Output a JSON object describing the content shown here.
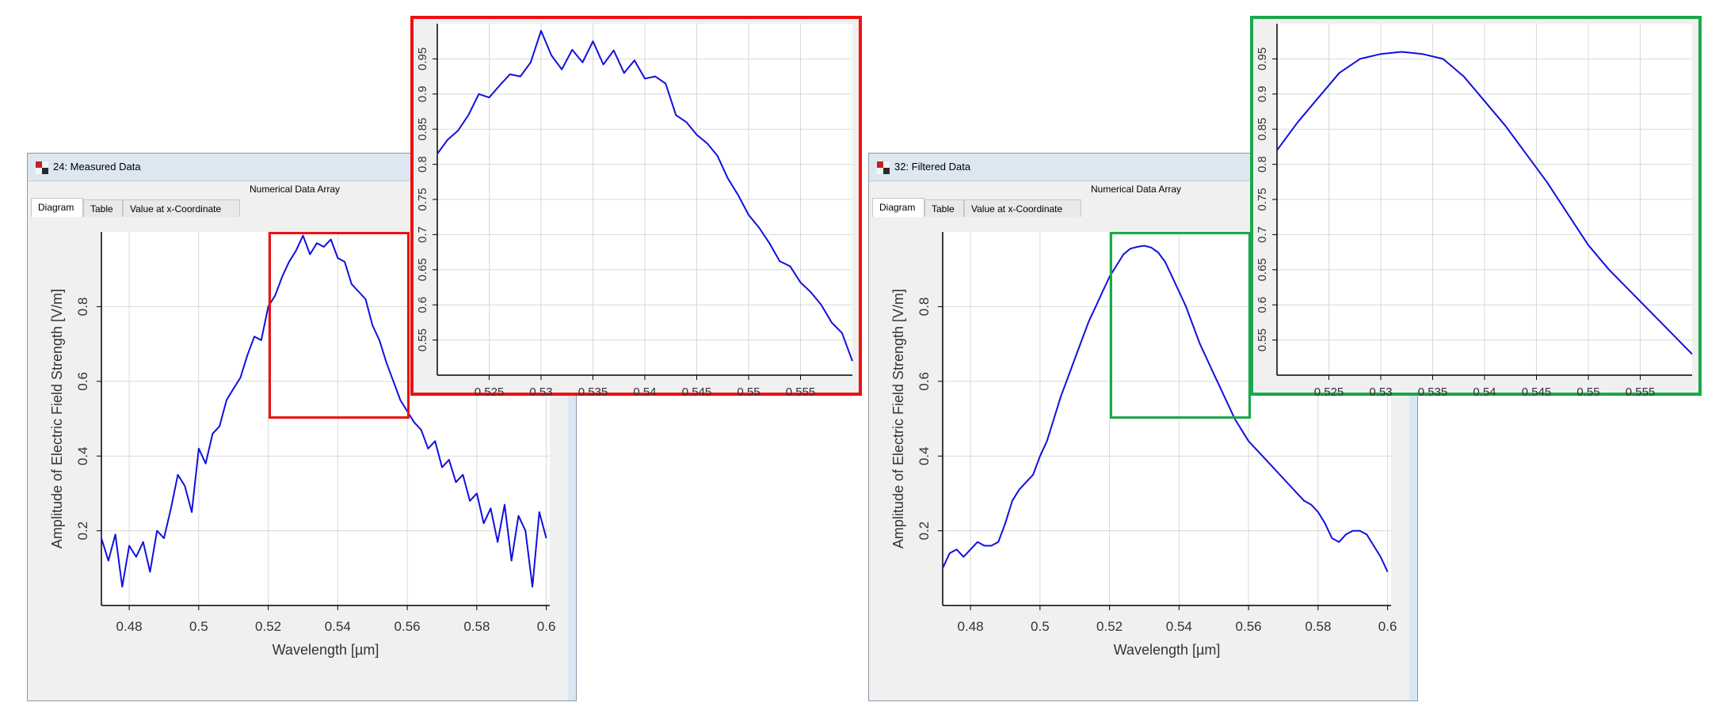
{
  "windows": [
    {
      "id": "measured",
      "title": "24: Measured Data",
      "subtitle": "Numerical Data Array",
      "tabs": [
        "Diagram",
        "Table",
        "Value at x-Coordinate"
      ],
      "active_tab": "Diagram"
    },
    {
      "id": "filtered",
      "title": "32: Filtered Data",
      "subtitle": "Numerical Data Array",
      "tabs": [
        "Diagram",
        "Table",
        "Value at x-Coordinate"
      ],
      "active_tab": "Diagram"
    }
  ],
  "colors": {
    "line": "#1010e0",
    "zoom_measured": "#ee1111",
    "zoom_filtered": "#1aa84a",
    "grid": "#d8d8d8"
  },
  "chart_data": [
    {
      "id": "measured-main",
      "type": "line",
      "xlabel": "Wavelength [µm]",
      "ylabel": "Amplitude of Electric Field Strength [V/m]",
      "xlim": [
        0.472,
        0.601
      ],
      "ylim": [
        0,
        1.0
      ],
      "xticks": [
        0.48,
        0.5,
        0.52,
        0.54,
        0.56,
        0.58,
        0.6
      ],
      "xtick_labels": [
        "0.48",
        "0.5",
        "0.52",
        "0.54",
        "0.56",
        "0.58",
        "0.6"
      ],
      "yticks": [
        0.2,
        0.4,
        0.6,
        0.8
      ],
      "ytick_labels": [
        "0.2",
        "0.4",
        "0.6",
        "0.8"
      ],
      "grid": true,
      "x": [
        0.472,
        0.474,
        0.476,
        0.478,
        0.48,
        0.482,
        0.484,
        0.486,
        0.488,
        0.49,
        0.492,
        0.494,
        0.496,
        0.498,
        0.5,
        0.502,
        0.504,
        0.506,
        0.508,
        0.51,
        0.512,
        0.514,
        0.516,
        0.518,
        0.52,
        0.522,
        0.524,
        0.526,
        0.528,
        0.53,
        0.532,
        0.534,
        0.536,
        0.538,
        0.54,
        0.542,
        0.544,
        0.546,
        0.548,
        0.55,
        0.552,
        0.554,
        0.556,
        0.558,
        0.56,
        0.562,
        0.564,
        0.566,
        0.568,
        0.57,
        0.572,
        0.574,
        0.576,
        0.578,
        0.58,
        0.582,
        0.584,
        0.586,
        0.588,
        0.59,
        0.592,
        0.594,
        0.596,
        0.598,
        0.6
      ],
      "y": [
        0.18,
        0.12,
        0.19,
        0.05,
        0.16,
        0.13,
        0.17,
        0.09,
        0.2,
        0.18,
        0.26,
        0.35,
        0.32,
        0.25,
        0.42,
        0.38,
        0.46,
        0.48,
        0.55,
        0.58,
        0.61,
        0.67,
        0.72,
        0.71,
        0.8,
        0.83,
        0.88,
        0.92,
        0.95,
        0.99,
        0.94,
        0.97,
        0.96,
        0.98,
        0.93,
        0.92,
        0.86,
        0.84,
        0.82,
        0.75,
        0.71,
        0.65,
        0.6,
        0.55,
        0.52,
        0.49,
        0.47,
        0.42,
        0.44,
        0.37,
        0.39,
        0.33,
        0.35,
        0.28,
        0.3,
        0.22,
        0.26,
        0.17,
        0.27,
        0.12,
        0.24,
        0.2,
        0.05,
        0.25,
        0.18
      ]
    },
    {
      "id": "measured-zoom",
      "type": "line",
      "xlim": [
        0.52,
        0.56
      ],
      "ylim": [
        0.5,
        1.0
      ],
      "xticks": [
        0.525,
        0.53,
        0.535,
        0.54,
        0.545,
        0.55,
        0.555
      ],
      "xtick_labels": [
        "0.525",
        "0.53",
        "0.535",
        "0.54",
        "0.545",
        "0.55",
        "0.555"
      ],
      "yticks": [
        0.55,
        0.6,
        0.65,
        0.7,
        0.75,
        0.8,
        0.85,
        0.9,
        0.95
      ],
      "ytick_labels": [
        "0.55",
        "0.6",
        "0.65",
        "0.7",
        "0.75",
        "0.8",
        "0.85",
        "0.9",
        "0.95"
      ],
      "grid": true,
      "x": [
        0.52,
        0.521,
        0.522,
        0.523,
        0.524,
        0.525,
        0.526,
        0.527,
        0.528,
        0.529,
        0.53,
        0.531,
        0.532,
        0.533,
        0.534,
        0.535,
        0.536,
        0.537,
        0.538,
        0.539,
        0.54,
        0.541,
        0.542,
        0.543,
        0.544,
        0.545,
        0.546,
        0.547,
        0.548,
        0.549,
        0.55,
        0.551,
        0.552,
        0.553,
        0.554,
        0.555,
        0.556,
        0.557,
        0.558,
        0.559,
        0.56
      ],
      "y": [
        0.815,
        0.835,
        0.848,
        0.87,
        0.9,
        0.895,
        0.912,
        0.928,
        0.925,
        0.945,
        0.99,
        0.955,
        0.935,
        0.963,
        0.945,
        0.975,
        0.942,
        0.962,
        0.93,
        0.948,
        0.922,
        0.925,
        0.915,
        0.87,
        0.86,
        0.842,
        0.83,
        0.812,
        0.78,
        0.756,
        0.728,
        0.71,
        0.688,
        0.662,
        0.655,
        0.632,
        0.618,
        0.6,
        0.575,
        0.56,
        0.52
      ]
    },
    {
      "id": "filtered-main",
      "type": "line",
      "xlabel": "Wavelength [µm]",
      "ylabel": "Amplitude of Electric Field Strength [V/m]",
      "xlim": [
        0.472,
        0.601
      ],
      "ylim": [
        0,
        1.0
      ],
      "xticks": [
        0.48,
        0.5,
        0.52,
        0.54,
        0.56,
        0.58,
        0.6
      ],
      "xtick_labels": [
        "0.48",
        "0.5",
        "0.52",
        "0.54",
        "0.56",
        "0.58",
        "0.6"
      ],
      "yticks": [
        0.2,
        0.4,
        0.6,
        0.8
      ],
      "ytick_labels": [
        "0.2",
        "0.4",
        "0.6",
        "0.8"
      ],
      "grid": true,
      "x": [
        0.472,
        0.474,
        0.476,
        0.478,
        0.48,
        0.482,
        0.484,
        0.486,
        0.488,
        0.49,
        0.492,
        0.494,
        0.496,
        0.498,
        0.5,
        0.502,
        0.504,
        0.506,
        0.508,
        0.51,
        0.512,
        0.514,
        0.516,
        0.518,
        0.52,
        0.522,
        0.524,
        0.526,
        0.528,
        0.53,
        0.532,
        0.534,
        0.536,
        0.538,
        0.54,
        0.542,
        0.544,
        0.546,
        0.548,
        0.55,
        0.552,
        0.554,
        0.556,
        0.558,
        0.56,
        0.562,
        0.564,
        0.566,
        0.568,
        0.57,
        0.572,
        0.574,
        0.576,
        0.578,
        0.58,
        0.582,
        0.584,
        0.586,
        0.588,
        0.59,
        0.592,
        0.594,
        0.596,
        0.598,
        0.6
      ],
      "y": [
        0.1,
        0.14,
        0.15,
        0.13,
        0.15,
        0.17,
        0.16,
        0.16,
        0.17,
        0.22,
        0.28,
        0.31,
        0.33,
        0.35,
        0.4,
        0.44,
        0.5,
        0.56,
        0.61,
        0.66,
        0.71,
        0.76,
        0.8,
        0.84,
        0.88,
        0.91,
        0.94,
        0.955,
        0.96,
        0.963,
        0.958,
        0.945,
        0.92,
        0.88,
        0.84,
        0.8,
        0.75,
        0.7,
        0.66,
        0.62,
        0.58,
        0.54,
        0.5,
        0.47,
        0.44,
        0.42,
        0.4,
        0.38,
        0.36,
        0.34,
        0.32,
        0.3,
        0.28,
        0.27,
        0.25,
        0.22,
        0.18,
        0.17,
        0.19,
        0.2,
        0.2,
        0.19,
        0.16,
        0.13,
        0.09
      ]
    },
    {
      "id": "filtered-zoom",
      "type": "line",
      "xlim": [
        0.52,
        0.56
      ],
      "ylim": [
        0.5,
        1.0
      ],
      "xticks": [
        0.525,
        0.53,
        0.535,
        0.54,
        0.545,
        0.55,
        0.555
      ],
      "xtick_labels": [
        "0.525",
        "0.53",
        "0.535",
        "0.54",
        "0.545",
        "0.55",
        "0.555"
      ],
      "yticks": [
        0.55,
        0.6,
        0.65,
        0.7,
        0.75,
        0.8,
        0.85,
        0.9,
        0.95
      ],
      "ytick_labels": [
        "0.55",
        "0.6",
        "0.65",
        "0.7",
        "0.75",
        "0.8",
        "0.85",
        "0.9",
        "0.95"
      ],
      "grid": true,
      "x": [
        0.52,
        0.522,
        0.524,
        0.526,
        0.528,
        0.53,
        0.532,
        0.534,
        0.536,
        0.538,
        0.54,
        0.542,
        0.544,
        0.546,
        0.548,
        0.55,
        0.552,
        0.554,
        0.556,
        0.558,
        0.56
      ],
      "y": [
        0.82,
        0.86,
        0.895,
        0.93,
        0.95,
        0.957,
        0.96,
        0.957,
        0.95,
        0.925,
        0.89,
        0.855,
        0.815,
        0.775,
        0.73,
        0.685,
        0.65,
        0.62,
        0.59,
        0.56,
        0.53
      ]
    }
  ]
}
